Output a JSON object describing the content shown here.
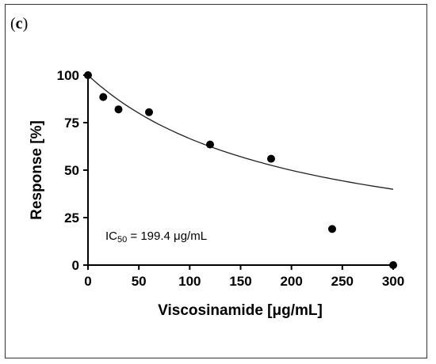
{
  "panel": {
    "open": "(",
    "letter": "c",
    "close": ")"
  },
  "chart_data": {
    "type": "scatter",
    "title": "",
    "xlabel": "Viscosinamide [μg/mL]",
    "ylabel": "Response [%]",
    "xlim": [
      0,
      300
    ],
    "ylim": [
      0,
      100
    ],
    "xticks": [
      0,
      50,
      100,
      150,
      200,
      250,
      300
    ],
    "yticks": [
      0,
      25,
      50,
      75,
      100
    ],
    "grid": false,
    "legend": "none",
    "points": [
      {
        "x": 0,
        "y": 100
      },
      {
        "x": 15,
        "y": 88.5
      },
      {
        "x": 30,
        "y": 82
      },
      {
        "x": 60,
        "y": 80.5
      },
      {
        "x": 120,
        "y": 63.5
      },
      {
        "x": 180,
        "y": 56
      },
      {
        "x": 240,
        "y": 19
      },
      {
        "x": 300,
        "y": 0
      }
    ],
    "fit_curve": {
      "model": "100 * IC50 / (IC50 + x)",
      "ic50": 199.4
    },
    "annotation": {
      "prefix": "IC",
      "subscript": "50",
      "suffix": " = 199.4 μg/mL"
    },
    "colors": {
      "points": "#000000",
      "curve": "#222222",
      "axes": "#000000"
    }
  }
}
